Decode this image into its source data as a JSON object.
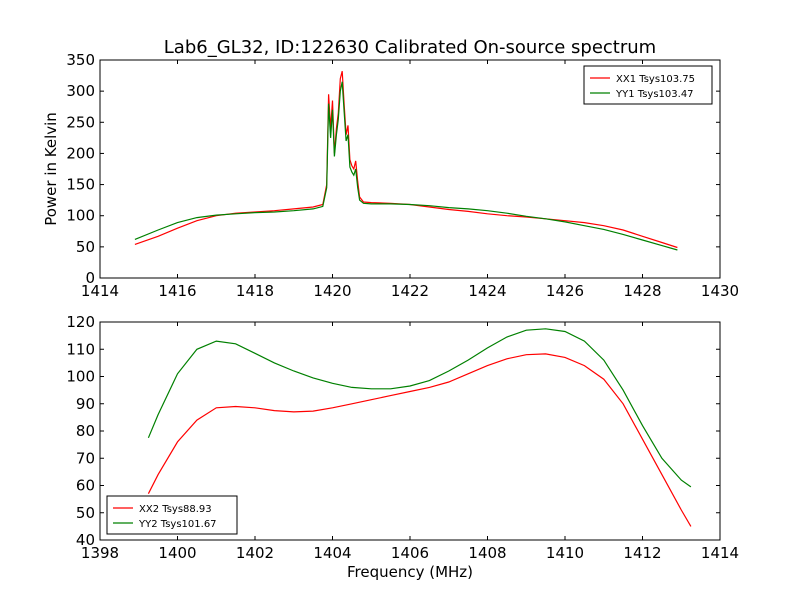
{
  "figure": {
    "title": "Lab6_GL32, ID:122630 Calibrated On-source spectrum"
  },
  "chart_data": [
    {
      "type": "line",
      "title": "Lab6_GL32, ID:122630 Calibrated On-source spectrum",
      "xlabel": "",
      "ylabel": "Power in Kelvin",
      "xlim": [
        1414,
        1430
      ],
      "ylim": [
        0,
        350
      ],
      "xticks": [
        1414,
        1416,
        1418,
        1420,
        1422,
        1424,
        1426,
        1428,
        1430
      ],
      "yticks": [
        0,
        50,
        100,
        150,
        200,
        250,
        300,
        350
      ],
      "grid": false,
      "legend_position": "top-right",
      "series": [
        {
          "name": "XX1 Tsys103.75",
          "color": "#ff0000",
          "x": [
            1414.9,
            1415.5,
            1416.0,
            1416.5,
            1417.0,
            1417.5,
            1418.0,
            1418.5,
            1419.0,
            1419.5,
            1419.75,
            1419.85,
            1419.9,
            1419.95,
            1420.0,
            1420.05,
            1420.1,
            1420.15,
            1420.2,
            1420.25,
            1420.3,
            1420.35,
            1420.4,
            1420.45,
            1420.5,
            1420.55,
            1420.6,
            1420.65,
            1420.7,
            1420.8,
            1421.0,
            1421.5,
            1422.0,
            1422.5,
            1423.0,
            1423.5,
            1424.0,
            1424.5,
            1425.0,
            1425.5,
            1426.0,
            1426.5,
            1427.0,
            1427.5,
            1428.0,
            1428.5,
            1428.9
          ],
          "y": [
            54,
            67,
            80,
            92,
            100,
            104,
            106,
            108,
            111,
            114,
            118,
            150,
            295,
            240,
            285,
            200,
            240,
            265,
            320,
            332,
            280,
            230,
            245,
            190,
            180,
            175,
            188,
            155,
            130,
            122,
            121,
            120,
            118,
            114,
            110,
            107,
            103,
            100,
            98,
            95,
            92,
            89,
            84,
            77,
            67,
            57,
            49
          ]
        },
        {
          "name": "YY1 Tsys103.47",
          "color": "#008000",
          "x": [
            1414.9,
            1415.5,
            1416.0,
            1416.5,
            1417.0,
            1417.5,
            1418.0,
            1418.5,
            1419.0,
            1419.5,
            1419.75,
            1419.85,
            1419.9,
            1419.95,
            1420.0,
            1420.05,
            1420.1,
            1420.15,
            1420.2,
            1420.25,
            1420.3,
            1420.35,
            1420.4,
            1420.45,
            1420.5,
            1420.55,
            1420.6,
            1420.65,
            1420.7,
            1420.8,
            1421.0,
            1421.5,
            1422.0,
            1422.5,
            1423.0,
            1423.5,
            1424.0,
            1424.5,
            1425.0,
            1425.5,
            1426.0,
            1426.5,
            1427.0,
            1427.5,
            1428.0,
            1428.5,
            1428.9
          ],
          "y": [
            62,
            77,
            89,
            97,
            101,
            103,
            105,
            106,
            108,
            111,
            115,
            145,
            280,
            225,
            270,
            195,
            230,
            255,
            300,
            315,
            268,
            220,
            230,
            178,
            170,
            165,
            175,
            145,
            125,
            120,
            119,
            119,
            118,
            116,
            113,
            111,
            108,
            104,
            99,
            95,
            90,
            84,
            78,
            70,
            61,
            52,
            45
          ]
        }
      ]
    },
    {
      "type": "line",
      "title": "",
      "xlabel": "Frequency (MHz)",
      "ylabel": "",
      "xlim": [
        1398,
        1414
      ],
      "ylim": [
        40,
        120
      ],
      "xticks": [
        1398,
        1400,
        1402,
        1404,
        1406,
        1408,
        1410,
        1412,
        1414
      ],
      "yticks": [
        40,
        50,
        60,
        70,
        80,
        90,
        100,
        110,
        120
      ],
      "grid": false,
      "legend_position": "bottom-left",
      "series": [
        {
          "name": "XX2 Tsys88.93",
          "color": "#ff0000",
          "x": [
            1399.25,
            1399.5,
            1400.0,
            1400.5,
            1401.0,
            1401.5,
            1402.0,
            1402.5,
            1403.0,
            1403.5,
            1404.0,
            1404.5,
            1405.0,
            1405.5,
            1406.0,
            1406.5,
            1407.0,
            1407.5,
            1408.0,
            1408.5,
            1409.0,
            1409.5,
            1410.0,
            1410.5,
            1411.0,
            1411.5,
            1412.0,
            1412.5,
            1413.0,
            1413.25
          ],
          "y": [
            57,
            64,
            76,
            84,
            88.5,
            89,
            88.5,
            87.5,
            87,
            87.3,
            88.5,
            90,
            91.5,
            93,
            94.5,
            96,
            98,
            101,
            104,
            106.5,
            108,
            108.3,
            107,
            104,
            99,
            90,
            77,
            64,
            51,
            45
          ]
        },
        {
          "name": "YY2 Tsys101.67",
          "color": "#008000",
          "x": [
            1399.25,
            1399.5,
            1400.0,
            1400.5,
            1401.0,
            1401.5,
            1402.0,
            1402.5,
            1403.0,
            1403.5,
            1404.0,
            1404.5,
            1405.0,
            1405.5,
            1406.0,
            1406.5,
            1407.0,
            1407.5,
            1408.0,
            1408.5,
            1409.0,
            1409.5,
            1410.0,
            1410.5,
            1411.0,
            1411.5,
            1412.0,
            1412.5,
            1413.0,
            1413.25
          ],
          "y": [
            77.5,
            86,
            101,
            110,
            113,
            112,
            108.5,
            105,
            102,
            99.5,
            97.5,
            96,
            95.5,
            95.5,
            96.5,
            98.5,
            102,
            106,
            110.5,
            114.5,
            117,
            117.5,
            116.5,
            113,
            106,
            95,
            82,
            70,
            62,
            59.5
          ]
        }
      ]
    }
  ]
}
